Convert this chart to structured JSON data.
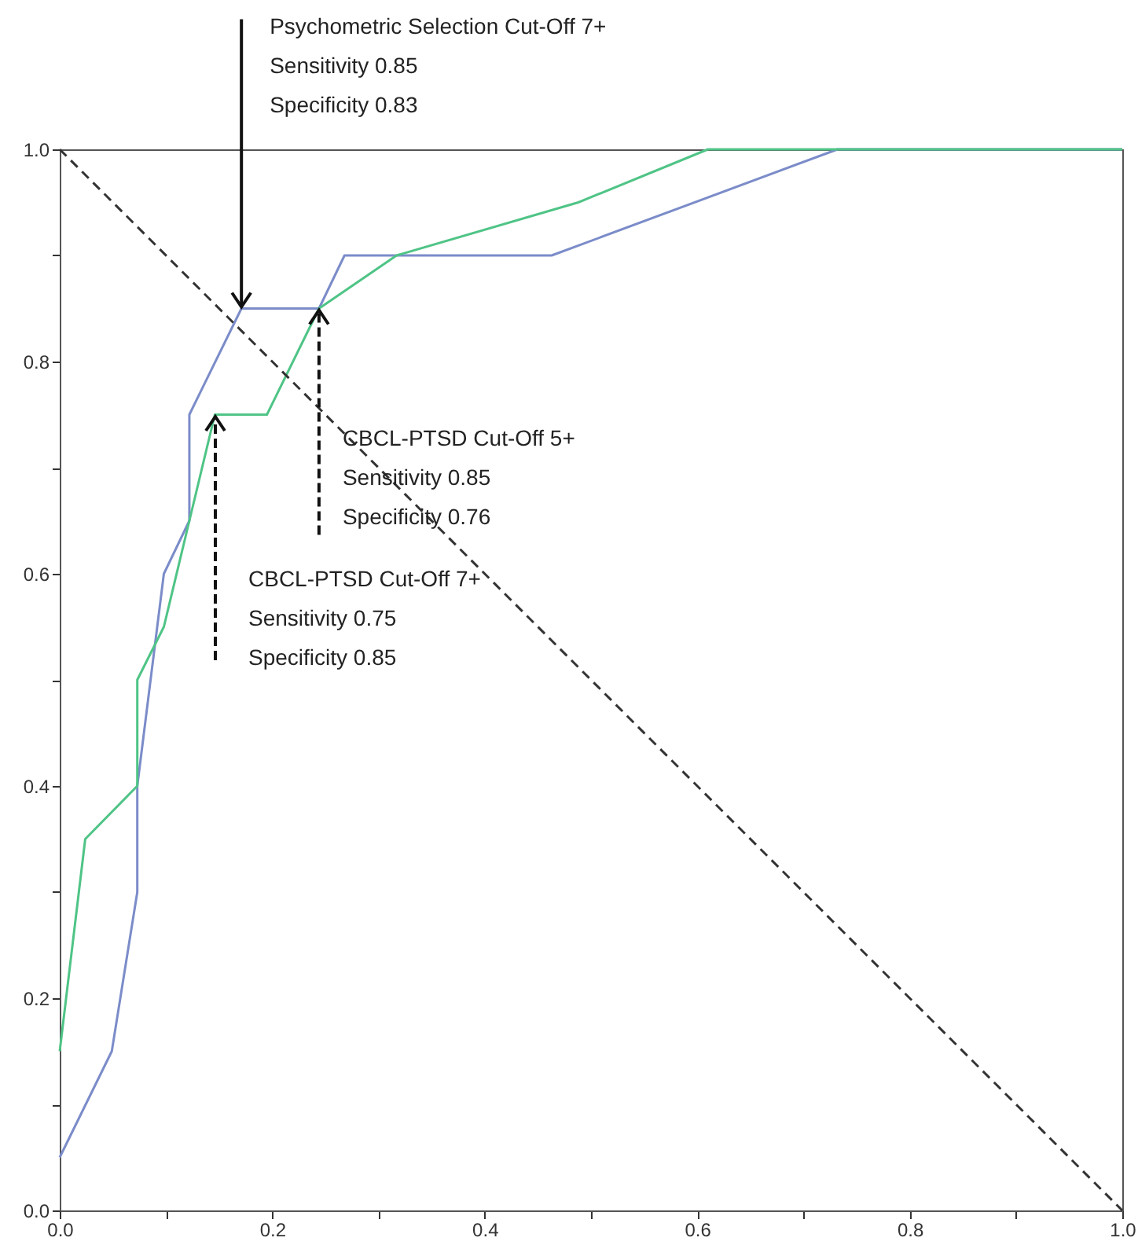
{
  "chart_data": {
    "type": "line",
    "xlim": [
      0,
      1
    ],
    "ylim": [
      0,
      1
    ],
    "xticks": [
      {
        "value": 0,
        "label": "0.0"
      },
      {
        "value": 0.1,
        "label": null
      },
      {
        "value": 0.2,
        "label": "0.2"
      },
      {
        "value": 0.3,
        "label": null
      },
      {
        "value": 0.4,
        "label": "0.4"
      },
      {
        "value": 0.5,
        "label": null
      },
      {
        "value": 0.6,
        "label": "0.6"
      },
      {
        "value": 0.7,
        "label": null
      },
      {
        "value": 0.8,
        "label": "0.8"
      },
      {
        "value": 0.9,
        "label": null
      },
      {
        "value": 1,
        "label": "1.0"
      }
    ],
    "yticks": [
      {
        "value": 0,
        "label": "0.0"
      },
      {
        "value": 0.1,
        "label": null
      },
      {
        "value": 0.2,
        "label": "0.2"
      },
      {
        "value": 0.3,
        "label": null
      },
      {
        "value": 0.4,
        "label": "0.4"
      },
      {
        "value": 0.5,
        "label": null
      },
      {
        "value": 0.6,
        "label": "0.6"
      },
      {
        "value": 0.7,
        "label": null
      },
      {
        "value": 0.8,
        "label": "0.8"
      },
      {
        "value": 0.9,
        "label": null
      },
      {
        "value": 1,
        "label": "1.0"
      }
    ],
    "series": [
      {
        "color": "#7b8cc9",
        "x": [
          0,
          0.049,
          0.073,
          0.073,
          0.098,
          0.122,
          0.122,
          0.171,
          0.244,
          0.268,
          0.463,
          0.732,
          1
        ],
        "values": [
          0.05,
          0.15,
          0.3,
          0.4,
          0.6,
          0.65,
          0.75,
          0.85,
          0.85,
          0.9,
          0.9,
          1,
          1
        ]
      },
      {
        "color": "#4fc486",
        "x": [
          0,
          0.024,
          0.073,
          0.073,
          0.098,
          0.122,
          0.146,
          0.195,
          0.244,
          0.317,
          0.488,
          0.61,
          1
        ],
        "values": [
          0.15,
          0.35,
          0.4,
          0.5,
          0.55,
          0.65,
          0.75,
          0.75,
          0.85,
          0.9,
          0.95,
          1,
          1
        ]
      },
      {
        "color": "#333333",
        "line_style": "dashed",
        "x": [
          0,
          1
        ],
        "values": [
          1,
          0
        ]
      }
    ],
    "annotations": [
      {
        "text": "Psychometric Selection Cut-Off 7+\nSensitivity 0.85\nSpecificity 0.83",
        "x": 0.171,
        "y": 0.85
      },
      {
        "text": "CBCL-PTSD Cut-Off 5+\nSensitivity 0.85\nSpecificity 0.76",
        "x": 0.244,
        "y": 0.85
      },
      "CBCL-PTSD Cut-Off 7+\nSensitivity 0.75\nSpecificity 0.85"
    ],
    "grid": false
  }
}
